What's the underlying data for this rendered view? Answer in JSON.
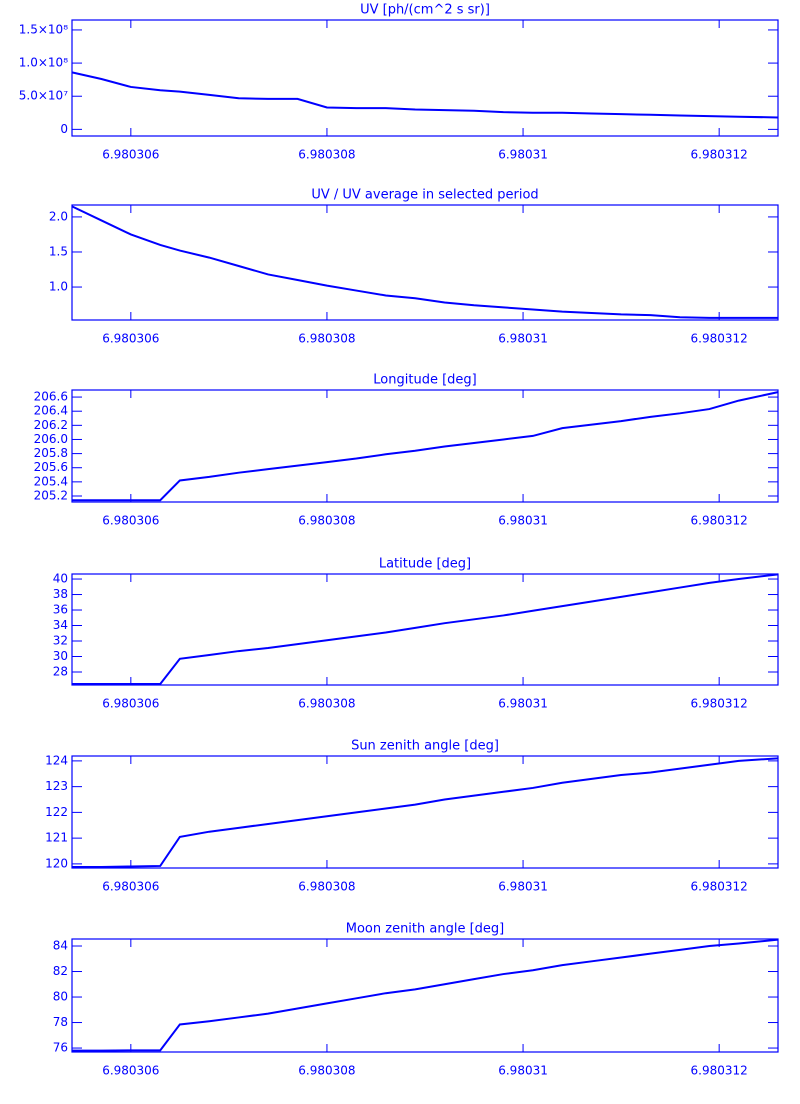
{
  "chart_data": [
    {
      "type": "line",
      "title": "UV [ph/(cm^2 s sr)]",
      "color": "#0000ff",
      "x": [
        6.9803054,
        6.9803057,
        6.980306,
        6.9803063,
        6.9803065,
        6.9803068,
        6.9803071,
        6.9803074,
        6.9803077,
        6.980308,
        6.9803083,
        6.9803086,
        6.9803089,
        6.9803092,
        6.9803095,
        6.9803098,
        6.9803101,
        6.9803104,
        6.9803107,
        6.980311,
        6.9803113,
        6.9803116,
        6.9803119,
        6.9803122,
        6.9803126
      ],
      "values": [
        86000000,
        76000000,
        64000000,
        59000000,
        57000000,
        52000000,
        47000000,
        46000000,
        46000000,
        33000000,
        32000000,
        32000000,
        30000000,
        29000000,
        28000000,
        26000000,
        25000000,
        25000000,
        24000000,
        23000000,
        22000000,
        21000000,
        20000000,
        19000000,
        18000000
      ],
      "xlim": [
        6.9803054,
        6.9803126
      ],
      "xticks": [
        6.980306,
        6.980308,
        6.98031,
        {
          "value": 6.980312,
          "label": "6.980312"
        }
      ],
      "ylim": [
        -10000000,
        165000000
      ],
      "yticks": [
        0,
        {
          "value": 50000000,
          "label": "5.0×10⁷"
        },
        {
          "value": 100000000,
          "label": "1.0×10⁸"
        },
        {
          "value": 150000000,
          "label": "1.5×10⁸"
        }
      ]
    },
    {
      "type": "line",
      "title": "UV / UV average in selected period",
      "color": "#0000ff",
      "x": [
        6.9803054,
        6.9803057,
        6.980306,
        6.9803063,
        6.9803065,
        6.9803068,
        6.9803071,
        6.9803074,
        6.9803077,
        6.980308,
        6.9803083,
        6.9803086,
        6.9803089,
        6.9803092,
        6.9803095,
        6.9803098,
        6.9803101,
        6.9803104,
        6.9803107,
        6.980311,
        6.9803113,
        6.9803116,
        6.9803119,
        6.9803122,
        6.9803126
      ],
      "values": [
        2.15,
        1.95,
        1.75,
        1.6,
        1.52,
        1.42,
        1.3,
        1.18,
        1.1,
        1.02,
        0.95,
        0.88,
        0.84,
        0.78,
        0.74,
        0.71,
        0.68,
        0.65,
        0.63,
        0.61,
        0.6,
        0.57,
        0.56,
        0.56,
        0.56
      ],
      "xlim": [
        6.9803054,
        6.9803126
      ],
      "xticks": [
        6.980306,
        6.980308,
        6.98031,
        {
          "value": 6.980312,
          "label": "6.980312"
        }
      ],
      "ylim": [
        0.53,
        2.17
      ],
      "yticks": [
        {
          "value": 1,
          "label": "1.0"
        },
        1.5,
        {
          "value": 2,
          "label": "2.0"
        }
      ]
    },
    {
      "type": "line",
      "title": "Longitude [deg]",
      "color": "#0000ff",
      "x": [
        6.9803054,
        6.9803057,
        6.980306,
        6.9803063,
        6.9803065,
        6.9803068,
        6.9803071,
        6.9803074,
        6.9803077,
        6.980308,
        6.9803083,
        6.9803086,
        6.9803089,
        6.9803092,
        6.9803095,
        6.9803098,
        6.9803101,
        6.9803104,
        6.9803107,
        6.980311,
        6.9803113,
        6.9803116,
        6.9803119,
        6.9803122,
        6.9803126
      ],
      "values": [
        205.14,
        205.14,
        205.14,
        205.14,
        205.42,
        205.47,
        205.53,
        205.58,
        205.63,
        205.68,
        205.73,
        205.79,
        205.84,
        205.9,
        205.95,
        206.0,
        206.05,
        206.16,
        206.21,
        206.26,
        206.32,
        206.37,
        206.43,
        206.55,
        206.67
      ],
      "xlim": [
        6.9803054,
        6.9803126
      ],
      "xticks": [
        6.980306,
        6.980308,
        6.98031,
        {
          "value": 6.980312,
          "label": "6.980312"
        }
      ],
      "ylim": [
        205.115,
        206.7
      ],
      "yticks": [
        205.2,
        205.4,
        205.6,
        205.8,
        {
          "value": 206,
          "label": "206.0"
        },
        206.2,
        206.4,
        206.6
      ]
    },
    {
      "type": "line",
      "title": "Latitude [deg]",
      "color": "#0000ff",
      "x": [
        6.9803054,
        6.9803057,
        6.980306,
        6.9803063,
        6.9803065,
        6.9803068,
        6.9803071,
        6.9803074,
        6.9803077,
        6.980308,
        6.9803083,
        6.9803086,
        6.9803089,
        6.9803092,
        6.9803095,
        6.9803098,
        6.9803101,
        6.9803104,
        6.9803107,
        6.980311,
        6.9803113,
        6.9803116,
        6.9803119,
        6.9803122,
        6.9803126
      ],
      "values": [
        26.45,
        26.45,
        26.45,
        26.45,
        29.7,
        30.2,
        30.7,
        31.1,
        31.6,
        32.1,
        32.6,
        33.1,
        33.7,
        34.3,
        34.8,
        35.3,
        35.9,
        36.5,
        37.1,
        37.7,
        38.3,
        38.9,
        39.5,
        40.0,
        40.6
      ],
      "xlim": [
        6.9803054,
        6.9803126
      ],
      "xticks": [
        6.980306,
        6.980308,
        6.98031,
        {
          "value": 6.980312,
          "label": "6.980312"
        }
      ],
      "ylim": [
        26.32,
        40.65
      ],
      "yticks": [
        28,
        30,
        32,
        34,
        36,
        38,
        40
      ]
    },
    {
      "type": "line",
      "title": "Sun zenith angle [deg]",
      "color": "#0000ff",
      "x": [
        6.9803054,
        6.9803057,
        6.980306,
        6.9803063,
        6.9803065,
        6.9803068,
        6.9803071,
        6.9803074,
        6.9803077,
        6.980308,
        6.9803083,
        6.9803086,
        6.9803089,
        6.9803092,
        6.9803095,
        6.9803098,
        6.9803101,
        6.9803104,
        6.9803107,
        6.980311,
        6.9803113,
        6.9803116,
        6.9803119,
        6.9803122,
        6.9803126
      ],
      "values": [
        119.88,
        119.88,
        119.9,
        119.92,
        121.05,
        121.25,
        121.4,
        121.55,
        121.7,
        121.85,
        122.0,
        122.15,
        122.3,
        122.5,
        122.65,
        122.8,
        122.95,
        123.15,
        123.3,
        123.45,
        123.55,
        123.7,
        123.85,
        124.0,
        124.1
      ],
      "xlim": [
        6.9803054,
        6.9803126
      ],
      "xticks": [
        6.980306,
        6.980308,
        6.98031,
        {
          "value": 6.980312,
          "label": "6.980312"
        }
      ],
      "ylim": [
        119.84,
        124.19
      ],
      "yticks": [
        120,
        121,
        122,
        123,
        124
      ]
    },
    {
      "type": "line",
      "title": "Moon zenith angle [deg]",
      "color": "#0000ff",
      "x": [
        6.9803054,
        6.9803057,
        6.980306,
        6.9803063,
        6.9803065,
        6.9803068,
        6.9803071,
        6.9803074,
        6.9803077,
        6.980308,
        6.9803083,
        6.9803086,
        6.9803089,
        6.9803092,
        6.9803095,
        6.9803098,
        6.9803101,
        6.9803104,
        6.9803107,
        6.980311,
        6.9803113,
        6.9803116,
        6.9803119,
        6.9803122,
        6.9803126
      ],
      "values": [
        75.8,
        75.8,
        75.82,
        75.82,
        77.85,
        78.1,
        78.4,
        78.7,
        79.1,
        79.5,
        79.9,
        80.3,
        80.6,
        81.0,
        81.4,
        81.8,
        82.1,
        82.5,
        82.8,
        83.1,
        83.4,
        83.7,
        84.0,
        84.2,
        84.5
      ],
      "xlim": [
        6.9803054,
        6.9803126
      ],
      "xticks": [
        6.980306,
        6.980308,
        6.98031,
        {
          "value": 6.980312,
          "label": "6.980312"
        }
      ],
      "ylim": [
        75.69,
        84.55
      ],
      "yticks": [
        76,
        78,
        80,
        82,
        84
      ]
    }
  ]
}
